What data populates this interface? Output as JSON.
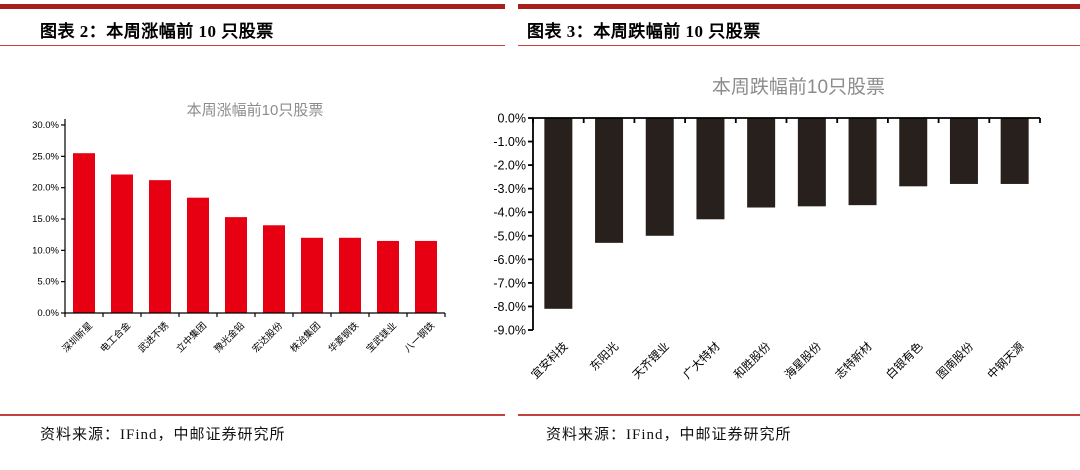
{
  "page": {
    "background": "#ffffff"
  },
  "colors": {
    "rule_thick": "#a8201c",
    "rule_thin": "#c5423c",
    "axis": "#000000"
  },
  "panels": [
    {
      "header": "图表 2：本周涨幅前 10 只股票",
      "source": "资料来源：IFind，中邮证券研究所"
    },
    {
      "header": "图表 3：本周跌幅前 10 只股票",
      "source": "资料来源：IFind，中邮证券研究所"
    }
  ],
  "chart_data": [
    {
      "type": "bar",
      "title": "本周涨幅前10只股票",
      "title_color": "#8c8c8c",
      "bar_color": "#e60012",
      "categories": [
        "深圳新星",
        "电工合金",
        "武进不锈",
        "立中集团",
        "豫光金铅",
        "宏达股份",
        "株冶集团",
        "华菱钢铁",
        "宝武镁业",
        "八一钢铁"
      ],
      "values": [
        25.5,
        22.1,
        21.2,
        18.4,
        15.3,
        14.0,
        12.0,
        12.0,
        11.5,
        11.5
      ],
      "unit": "%",
      "xlabel": "",
      "ylabel": "",
      "ylim": [
        0,
        30
      ],
      "ytick_labels_top_to_bottom": [
        "30.0%",
        "25.0%",
        "20.0%",
        "15.0%",
        "10.0%",
        "5.0%",
        "0.0%"
      ],
      "grid": false,
      "legend": "none"
    },
    {
      "type": "bar",
      "title": "本周跌幅前10只股票",
      "title_color": "#8c8c8c",
      "bar_color": "#27201c",
      "categories": [
        "宜安科技",
        "东阳光",
        "天齐锂业",
        "广大特材",
        "和胜股份",
        "海星股份",
        "志特新材",
        "白银有色",
        "图南股份",
        "中钢天源"
      ],
      "values": [
        -8.1,
        -5.3,
        -5.0,
        -4.3,
        -3.8,
        -3.75,
        -3.7,
        -2.9,
        -2.8,
        -2.8
      ],
      "unit": "%",
      "xlabel": "",
      "ylabel": "",
      "ylim": [
        -9,
        0
      ],
      "ytick_labels_top_to_bottom": [
        "0.0%",
        "-1.0%",
        "-2.0%",
        "-3.0%",
        "-4.0%",
        "-5.0%",
        "-6.0%",
        "-7.0%",
        "-8.0%",
        "-9.0%"
      ],
      "grid": false,
      "legend": "none"
    }
  ]
}
